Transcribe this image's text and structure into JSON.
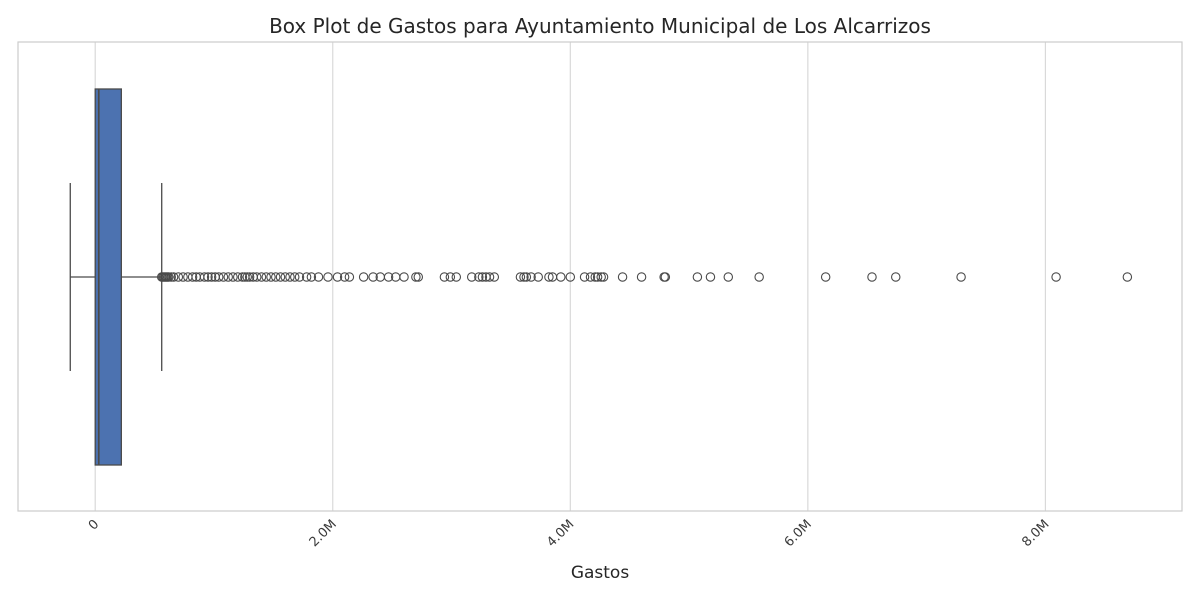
{
  "chart_data": {
    "type": "boxplot",
    "orientation": "horizontal",
    "title": "Box Plot de Gastos para Ayuntamiento Municipal de Los Alcarrizos",
    "xlabel": "Gastos",
    "ylabel": "",
    "xlim": [
      -650000,
      9150000
    ],
    "x_ticks": [
      {
        "value": 0,
        "label": "0"
      },
      {
        "value": 2000000,
        "label": "2.0M"
      },
      {
        "value": 4000000,
        "label": "4.0M"
      },
      {
        "value": 6000000,
        "label": "6.0M"
      },
      {
        "value": 8000000,
        "label": "8.0M"
      }
    ],
    "tick_rotation_deg": 45,
    "grid": "vertical",
    "box": {
      "whisker_low": -210000,
      "q1": 0,
      "median": 30000,
      "q3": 220000,
      "whisker_high": 560000
    },
    "outliers": [
      560000,
      570000,
      580000,
      590000,
      600000,
      610000,
      620000,
      640000,
      660000,
      700000,
      740000,
      780000,
      820000,
      850000,
      880000,
      920000,
      950000,
      980000,
      1010000,
      1040000,
      1080000,
      1120000,
      1160000,
      1200000,
      1240000,
      1260000,
      1280000,
      1300000,
      1330000,
      1360000,
      1400000,
      1440000,
      1480000,
      1520000,
      1560000,
      1600000,
      1640000,
      1680000,
      1720000,
      1780000,
      1820000,
      1880000,
      1960000,
      2040000,
      2100000,
      2140000,
      2260000,
      2340000,
      2400000,
      2470000,
      2530000,
      2600000,
      2700000,
      2720000,
      2940000,
      2990000,
      3040000,
      3170000,
      3230000,
      3260000,
      3290000,
      3320000,
      3360000,
      3580000,
      3610000,
      3630000,
      3670000,
      3730000,
      3820000,
      3850000,
      3920000,
      4000000,
      4120000,
      4170000,
      4210000,
      4230000,
      4260000,
      4280000,
      4440000,
      4600000,
      4790000,
      4800000,
      5070000,
      5180000,
      5330000,
      5590000,
      6150000,
      6540000,
      6740000,
      7290000,
      8090000,
      8690000
    ],
    "colors": {
      "box_fill": "#4c72b0",
      "lines": "#4a4a4a",
      "grid": "#d9d9d9",
      "frame": "#cccccc"
    }
  }
}
